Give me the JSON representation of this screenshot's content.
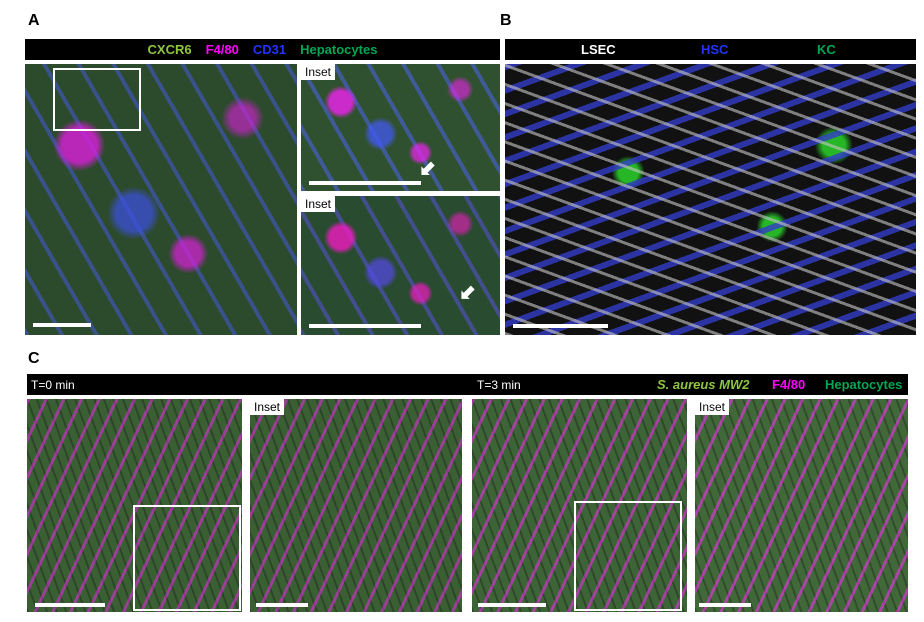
{
  "panel_a": {
    "label": "A",
    "legend": [
      {
        "text": "CXCR6",
        "color": "#8dc63f"
      },
      {
        "text": "F4/80",
        "color": "#ff00ff"
      },
      {
        "text": "CD31",
        "color": "#2233ff"
      },
      {
        "text": "Hepatocytes",
        "color": "#00a651"
      }
    ],
    "inset_label": "Inset"
  },
  "panel_b": {
    "label": "B",
    "legend": [
      {
        "text": "LSEC",
        "color": "#ffffff"
      },
      {
        "text": "HSC",
        "color": "#2233ff"
      },
      {
        "text": "KC",
        "color": "#00a651"
      }
    ]
  },
  "panel_c": {
    "label": "C",
    "time_left": "T=0 min",
    "time_right": "T=3 min",
    "legend": [
      {
        "text": "S. aureus MW2",
        "color": "#8dc63f"
      },
      {
        "text": "F4/80",
        "color": "#ff00ff"
      },
      {
        "text": "Hepatocytes",
        "color": "#00a651"
      }
    ],
    "inset_label": "Inset"
  }
}
